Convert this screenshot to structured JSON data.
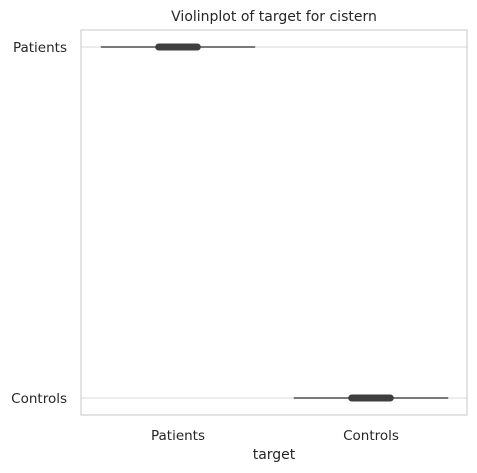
{
  "chart_data": {
    "type": "violin",
    "title": "Violinplot of target for cistern",
    "xlabel": "target",
    "ylabel": "",
    "x_categories": [
      "Patients",
      "Controls"
    ],
    "y_categories": [
      "Patients",
      "Controls"
    ],
    "grid": "horizontal",
    "series": [
      {
        "name": "Patients",
        "x_category": "Patients",
        "y_category": "Patients",
        "whisker": [
          -0.4,
          0.4
        ],
        "box": [
          -0.1,
          0.1
        ],
        "line_color": "#4d4d4d",
        "box_color": "#3f3f3f"
      },
      {
        "name": "Controls",
        "x_category": "Controls",
        "y_category": "Controls",
        "whisker": [
          -0.4,
          0.4
        ],
        "box": [
          -0.1,
          0.1
        ],
        "line_color": "#4d4d4d",
        "box_color": "#3f3f3f"
      }
    ],
    "colors": {
      "grid": "#d9d9d9",
      "spine": "#cccccc",
      "text": "#262626"
    }
  }
}
